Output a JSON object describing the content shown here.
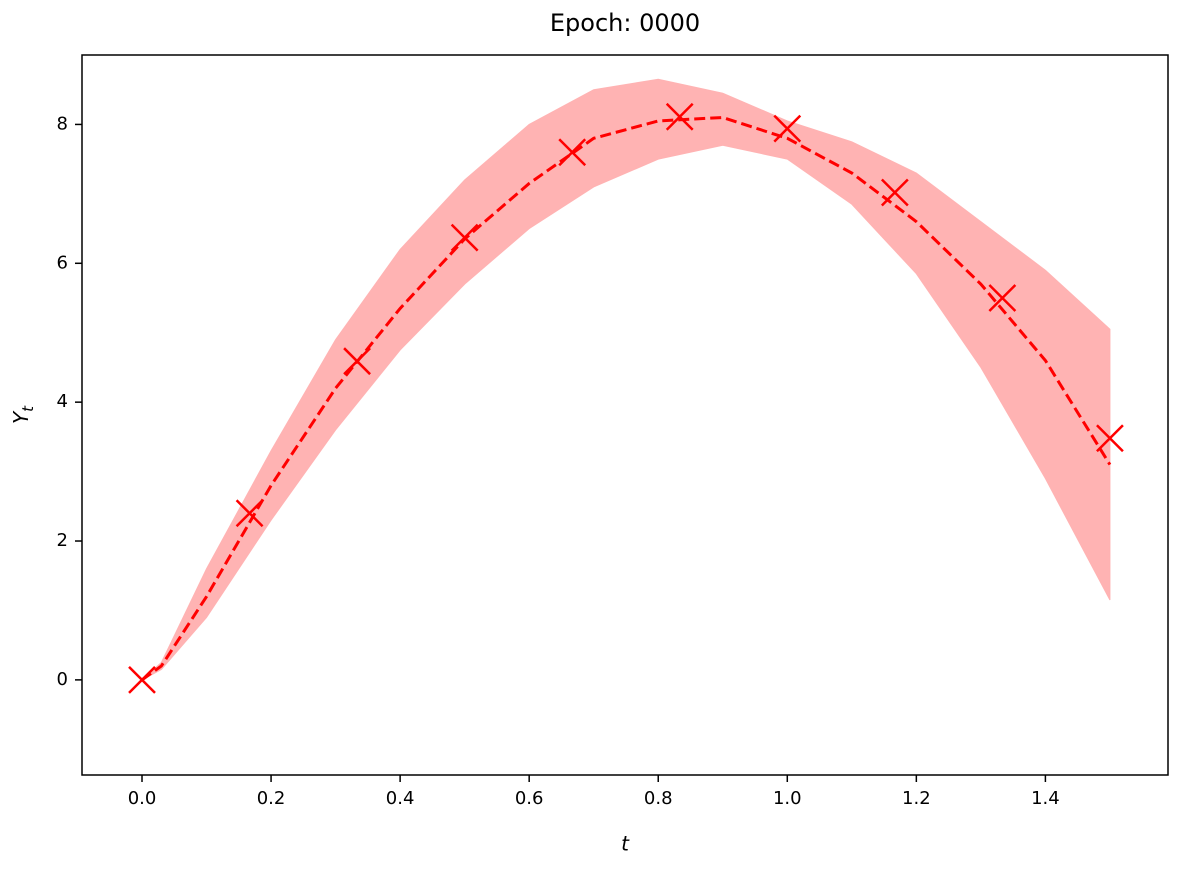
{
  "chart_data": {
    "type": "line",
    "title": "Epoch: 0000",
    "xlabel": "t",
    "ylabel": {
      "main": "Y",
      "sub": "t"
    },
    "xlim": [
      -0.093,
      1.59
    ],
    "ylim": [
      -1.37,
      9.0
    ],
    "xticks": [
      {
        "value": 0,
        "label": "0.0"
      },
      {
        "value": 0.2,
        "label": "0.2"
      },
      {
        "value": 0.4,
        "label": "0.4"
      },
      {
        "value": 0.6,
        "label": "0.6"
      },
      {
        "value": 0.8,
        "label": "0.8"
      },
      {
        "value": 1.0,
        "label": "1.0"
      },
      {
        "value": 1.2,
        "label": "1.2"
      },
      {
        "value": 1.4,
        "label": "1.4"
      }
    ],
    "yticks": [
      0,
      2,
      4,
      6,
      8
    ],
    "x": [
      0,
      0.03,
      0.1,
      0.2,
      0.3,
      0.4,
      0.5,
      0.6,
      0.7,
      0.8,
      0.9,
      1.0,
      1.1,
      1.2,
      1.3,
      1.4,
      1.5
    ],
    "line": {
      "color": "#ff0000",
      "values": [
        0,
        0.2,
        1.2,
        2.8,
        4.2,
        5.35,
        6.35,
        7.15,
        7.8,
        8.05,
        8.1,
        7.8,
        7.3,
        6.6,
        5.7,
        4.6,
        3.1
      ]
    },
    "band": {
      "color": "#ffb3b3",
      "upper": [
        0,
        0.25,
        1.6,
        3.3,
        4.9,
        6.2,
        7.2,
        8.0,
        8.5,
        8.65,
        8.45,
        8.05,
        7.75,
        7.3,
        6.6,
        5.9,
        5.05
      ],
      "lower": [
        0,
        0.15,
        0.9,
        2.3,
        3.6,
        4.75,
        5.7,
        6.5,
        7.1,
        7.5,
        7.7,
        7.5,
        6.85,
        5.85,
        4.5,
        2.9,
        1.15
      ]
    },
    "points": {
      "color": "#ff0000",
      "x": [
        0,
        0.1667,
        0.3333,
        0.5,
        0.6667,
        0.8333,
        1.0,
        1.1667,
        1.3333,
        1.5
      ],
      "values": [
        0,
        2.4,
        4.59,
        6.37,
        7.6,
        8.11,
        7.94,
        7.02,
        5.5,
        3.48
      ]
    }
  }
}
